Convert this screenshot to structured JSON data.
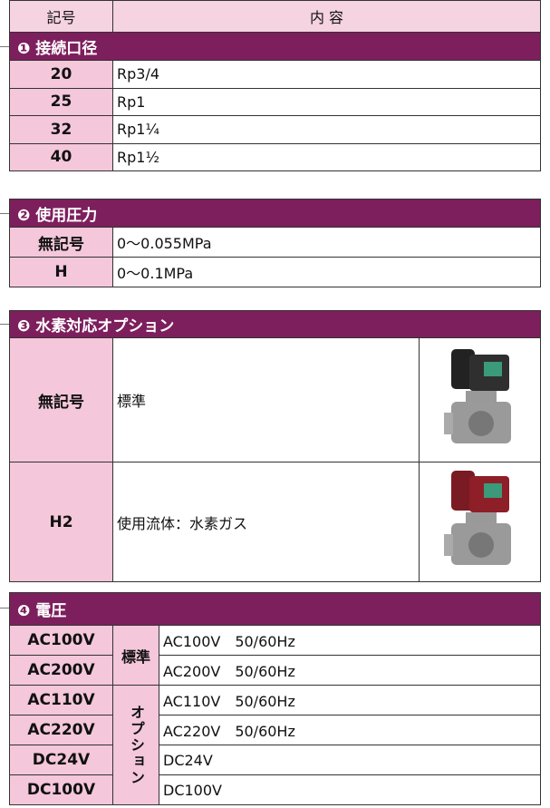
{
  "header": {
    "code": "記号",
    "content": "内 容"
  },
  "sections": [
    {
      "title": "❶ 接続口径",
      "rows": [
        {
          "code": "20",
          "content": "Rp3/4"
        },
        {
          "code": "25",
          "content": "Rp1"
        },
        {
          "code": "32",
          "content": "Rp1¼"
        },
        {
          "code": "40",
          "content": "Rp1½"
        }
      ]
    },
    {
      "title": "❷ 使用圧力",
      "rows": [
        {
          "code": "無記号",
          "content": "0～0.055MPa"
        },
        {
          "code": "H",
          "content": "0～0.1MPa"
        }
      ]
    },
    {
      "title": "❸ 水素対応オプション",
      "rows": [
        {
          "code": "無記号",
          "content": "標準"
        },
        {
          "code": "H2",
          "content": "使用流体：水素ガス"
        }
      ]
    },
    {
      "title": "❹ 電圧",
      "groups": [
        "標準",
        "オプション"
      ],
      "rows": [
        {
          "code": "AC100V",
          "content": "AC100V　50/60Hz"
        },
        {
          "code": "AC200V",
          "content": "AC200V　50/60Hz"
        },
        {
          "code": "AC110V",
          "content": "AC110V　50/60Hz"
        },
        {
          "code": "AC220V",
          "content": "AC220V　50/60Hz"
        },
        {
          "code": "DC24V",
          "content": "DC24V"
        },
        {
          "code": "DC100V",
          "content": "DC100V"
        }
      ]
    }
  ]
}
